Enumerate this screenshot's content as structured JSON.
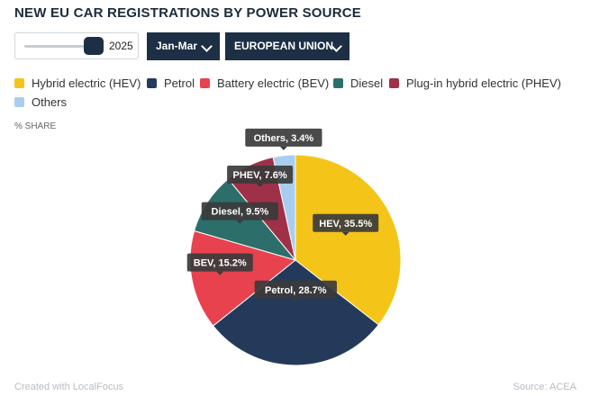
{
  "title": "NEW EU CAR REGISTRATIONS BY POWER SOURCE",
  "controls": {
    "year_value": "2025",
    "period_label": "Jan-Mar",
    "region_label": "EUROPEAN UNION"
  },
  "legend": [
    {
      "label": "Hybrid electric (HEV)",
      "color": "#f4c518"
    },
    {
      "label": "Petrol",
      "color": "#243a5a"
    },
    {
      "label": "Battery electric (BEV)",
      "color": "#e8424f"
    },
    {
      "label": "Diesel",
      "color": "#2c6e6a"
    },
    {
      "label": "Plug-in hybrid electric (PHEV)",
      "color": "#a03048"
    },
    {
      "label": "Others",
      "color": "#a9cdee"
    }
  ],
  "axis_note": "% SHARE",
  "chart_data": {
    "type": "pie",
    "unit": "%",
    "slices": [
      {
        "name": "HEV",
        "value": 35.5,
        "label": "HEV, 35.5%",
        "color": "#f4c518"
      },
      {
        "name": "Petrol",
        "value": 28.7,
        "label": "Petrol, 28.7%",
        "color": "#243a5a"
      },
      {
        "name": "BEV",
        "value": 15.2,
        "label": "BEV, 15.2%",
        "color": "#e8424f"
      },
      {
        "name": "Diesel",
        "value": 9.5,
        "label": "Diesel, 9.5%",
        "color": "#2c6e6a"
      },
      {
        "name": "PHEV",
        "value": 7.6,
        "label": "PHEV, 7.6%",
        "color": "#a03048"
      },
      {
        "name": "Others",
        "value": 3.4,
        "label": "Others, 3.4%",
        "color": "#a9cdee"
      }
    ]
  },
  "footer": {
    "credit": "Created with LocalFocus",
    "source": "Source:  ACEA"
  }
}
